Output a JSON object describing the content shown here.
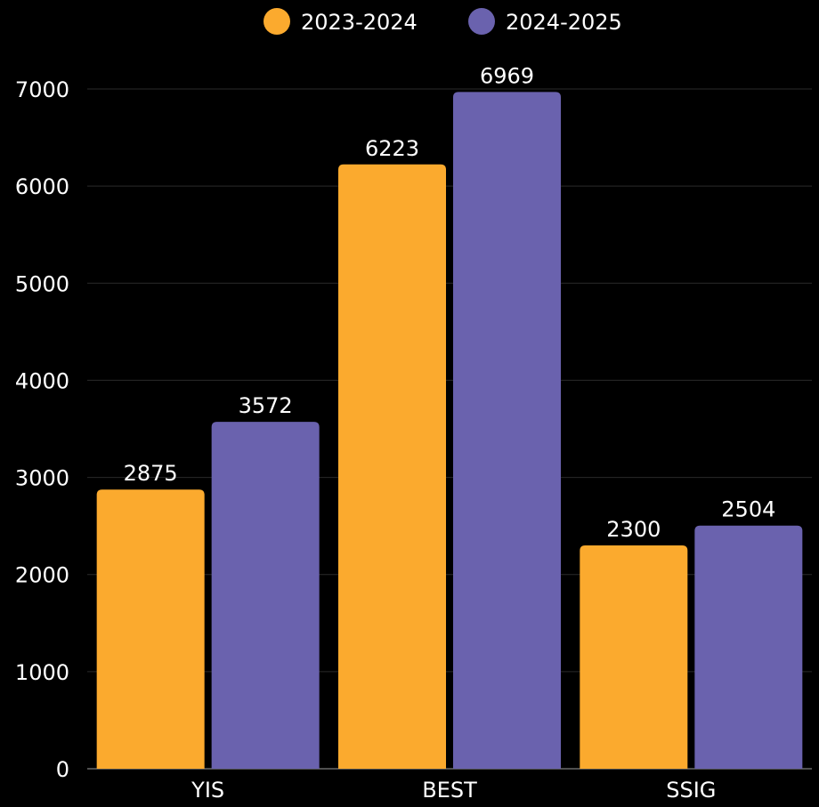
{
  "colors": {
    "background": "#000000",
    "text": "#ffffff",
    "grid": "#2a2a2a",
    "axis": "#6a6a6a"
  },
  "chart_data": {
    "type": "bar",
    "title": "",
    "xlabel": "",
    "ylabel": "",
    "categories": [
      "YIS",
      "BEST",
      "SSIG"
    ],
    "series": [
      {
        "name": "2023-2024",
        "color": "#FBAA2E",
        "values": [
          2875,
          6223,
          2300
        ]
      },
      {
        "name": "2024-2025",
        "color": "#6A62AE",
        "values": [
          3572,
          6969,
          2504
        ]
      }
    ],
    "ylim": [
      0,
      7000
    ],
    "yticks": [
      0,
      1000,
      2000,
      3000,
      4000,
      5000,
      6000,
      7000
    ],
    "grid": true,
    "legend": "top-center",
    "data_labels": true
  }
}
